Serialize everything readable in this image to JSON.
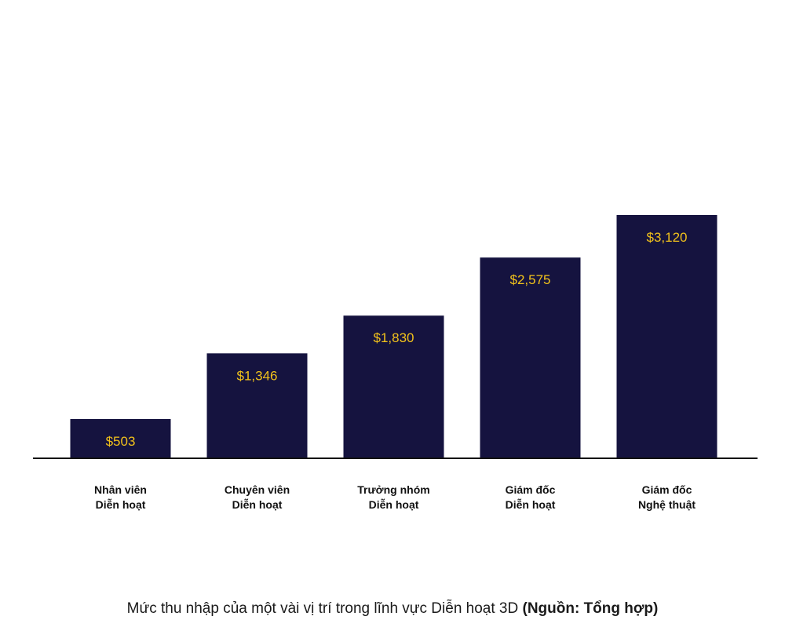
{
  "chart_data": {
    "type": "bar",
    "categories": [
      [
        "Nhân viên",
        "Diễn hoạt"
      ],
      [
        "Chuyên viên",
        "Diễn hoạt"
      ],
      [
        "Trưởng nhóm",
        "Diễn hoạt"
      ],
      [
        "Giám đốc",
        "Diễn hoạt"
      ],
      [
        "Giám đốc",
        "Nghệ thuật"
      ]
    ],
    "values": [
      503,
      1346,
      1830,
      2575,
      3120
    ],
    "value_labels": [
      "$503",
      "$1,346",
      "$1,830",
      "$2,575",
      "$3,120"
    ],
    "ylim": [
      0,
      3120
    ],
    "grid": false,
    "legend": "none"
  },
  "colors": {
    "bar": "#15133f",
    "value_text": "#f2c21b",
    "axis": "#111111",
    "label_text": "#111111"
  },
  "caption": {
    "text": "Mức thu nhập của một vài vị trí trong lĩnh vực Diễn hoạt 3D",
    "source": "(Nguồn: Tổng hợp)"
  }
}
